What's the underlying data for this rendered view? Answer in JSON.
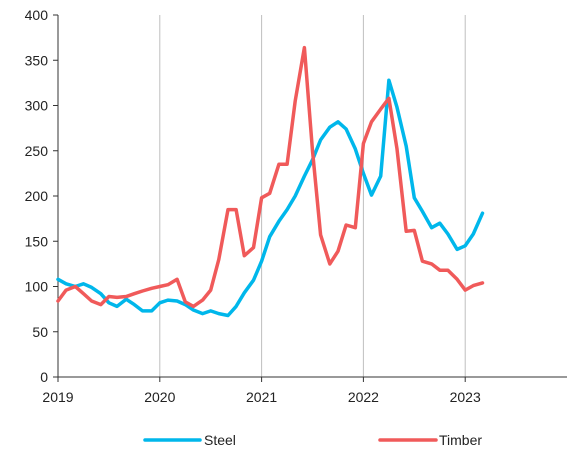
{
  "chart_data": {
    "type": "line",
    "title": "",
    "xlabel": "",
    "ylabel": "",
    "xlim": [
      2019,
      2024
    ],
    "ylim": [
      0,
      400
    ],
    "x_ticks": [
      "2019",
      "2020",
      "2021",
      "2022",
      "2023"
    ],
    "y_ticks": [
      "0",
      "50",
      "100",
      "150",
      "200",
      "250",
      "300",
      "350",
      "400"
    ],
    "grid": "vertical",
    "legend_position": "bottom",
    "series": [
      {
        "name": "Steel",
        "color": "#00b7eb",
        "points": [
          [
            2019.0,
            108
          ],
          [
            2019.08,
            103
          ],
          [
            2019.17,
            100
          ],
          [
            2019.25,
            103
          ],
          [
            2019.33,
            99
          ],
          [
            2019.42,
            92
          ],
          [
            2019.5,
            82
          ],
          [
            2019.58,
            78
          ],
          [
            2019.67,
            86
          ],
          [
            2019.75,
            80
          ],
          [
            2019.83,
            73
          ],
          [
            2019.92,
            73
          ],
          [
            2020.0,
            82
          ],
          [
            2020.08,
            85
          ],
          [
            2020.17,
            84
          ],
          [
            2020.25,
            80
          ],
          [
            2020.33,
            74
          ],
          [
            2020.42,
            70
          ],
          [
            2020.5,
            73
          ],
          [
            2020.58,
            70
          ],
          [
            2020.67,
            68
          ],
          [
            2020.75,
            78
          ],
          [
            2020.83,
            93
          ],
          [
            2020.92,
            107
          ],
          [
            2021.0,
            128
          ],
          [
            2021.08,
            155
          ],
          [
            2021.17,
            172
          ],
          [
            2021.25,
            185
          ],
          [
            2021.33,
            200
          ],
          [
            2021.42,
            222
          ],
          [
            2021.5,
            240
          ],
          [
            2021.58,
            262
          ],
          [
            2021.67,
            276
          ],
          [
            2021.75,
            282
          ],
          [
            2021.83,
            274
          ],
          [
            2021.92,
            252
          ],
          [
            2022.0,
            225
          ],
          [
            2022.08,
            201
          ],
          [
            2022.17,
            222
          ],
          [
            2022.25,
            328
          ],
          [
            2022.33,
            298
          ],
          [
            2022.42,
            255
          ],
          [
            2022.5,
            198
          ],
          [
            2022.58,
            183
          ],
          [
            2022.67,
            165
          ],
          [
            2022.75,
            170
          ],
          [
            2022.83,
            158
          ],
          [
            2022.92,
            141
          ],
          [
            2023.0,
            145
          ],
          [
            2023.08,
            158
          ],
          [
            2023.17,
            181
          ]
        ]
      },
      {
        "name": "Timber",
        "color": "#f05a5a",
        "points": [
          [
            2019.0,
            84
          ],
          [
            2019.08,
            96
          ],
          [
            2019.17,
            100
          ],
          [
            2019.25,
            92
          ],
          [
            2019.33,
            84
          ],
          [
            2019.42,
            80
          ],
          [
            2019.5,
            89
          ],
          [
            2019.58,
            88
          ],
          [
            2019.67,
            89
          ],
          [
            2019.75,
            92
          ],
          [
            2019.83,
            95
          ],
          [
            2019.92,
            98
          ],
          [
            2020.0,
            100
          ],
          [
            2020.08,
            102
          ],
          [
            2020.17,
            108
          ],
          [
            2020.25,
            83
          ],
          [
            2020.33,
            78
          ],
          [
            2020.42,
            85
          ],
          [
            2020.5,
            96
          ],
          [
            2020.58,
            130
          ],
          [
            2020.67,
            185
          ],
          [
            2020.75,
            185
          ],
          [
            2020.83,
            134
          ],
          [
            2020.92,
            143
          ],
          [
            2021.0,
            198
          ],
          [
            2021.08,
            203
          ],
          [
            2021.17,
            235
          ],
          [
            2021.25,
            235
          ],
          [
            2021.33,
            305
          ],
          [
            2021.42,
            364
          ],
          [
            2021.5,
            250
          ],
          [
            2021.58,
            157
          ],
          [
            2021.67,
            125
          ],
          [
            2021.75,
            139
          ],
          [
            2021.83,
            168
          ],
          [
            2021.92,
            165
          ],
          [
            2022.0,
            258
          ],
          [
            2022.08,
            282
          ],
          [
            2022.17,
            296
          ],
          [
            2022.25,
            308
          ],
          [
            2022.33,
            252
          ],
          [
            2022.42,
            161
          ],
          [
            2022.5,
            162
          ],
          [
            2022.58,
            128
          ],
          [
            2022.67,
            125
          ],
          [
            2022.75,
            118
          ],
          [
            2022.83,
            118
          ],
          [
            2022.92,
            108
          ],
          [
            2023.0,
            96
          ],
          [
            2023.08,
            101
          ],
          [
            2023.17,
            104
          ]
        ]
      }
    ]
  }
}
